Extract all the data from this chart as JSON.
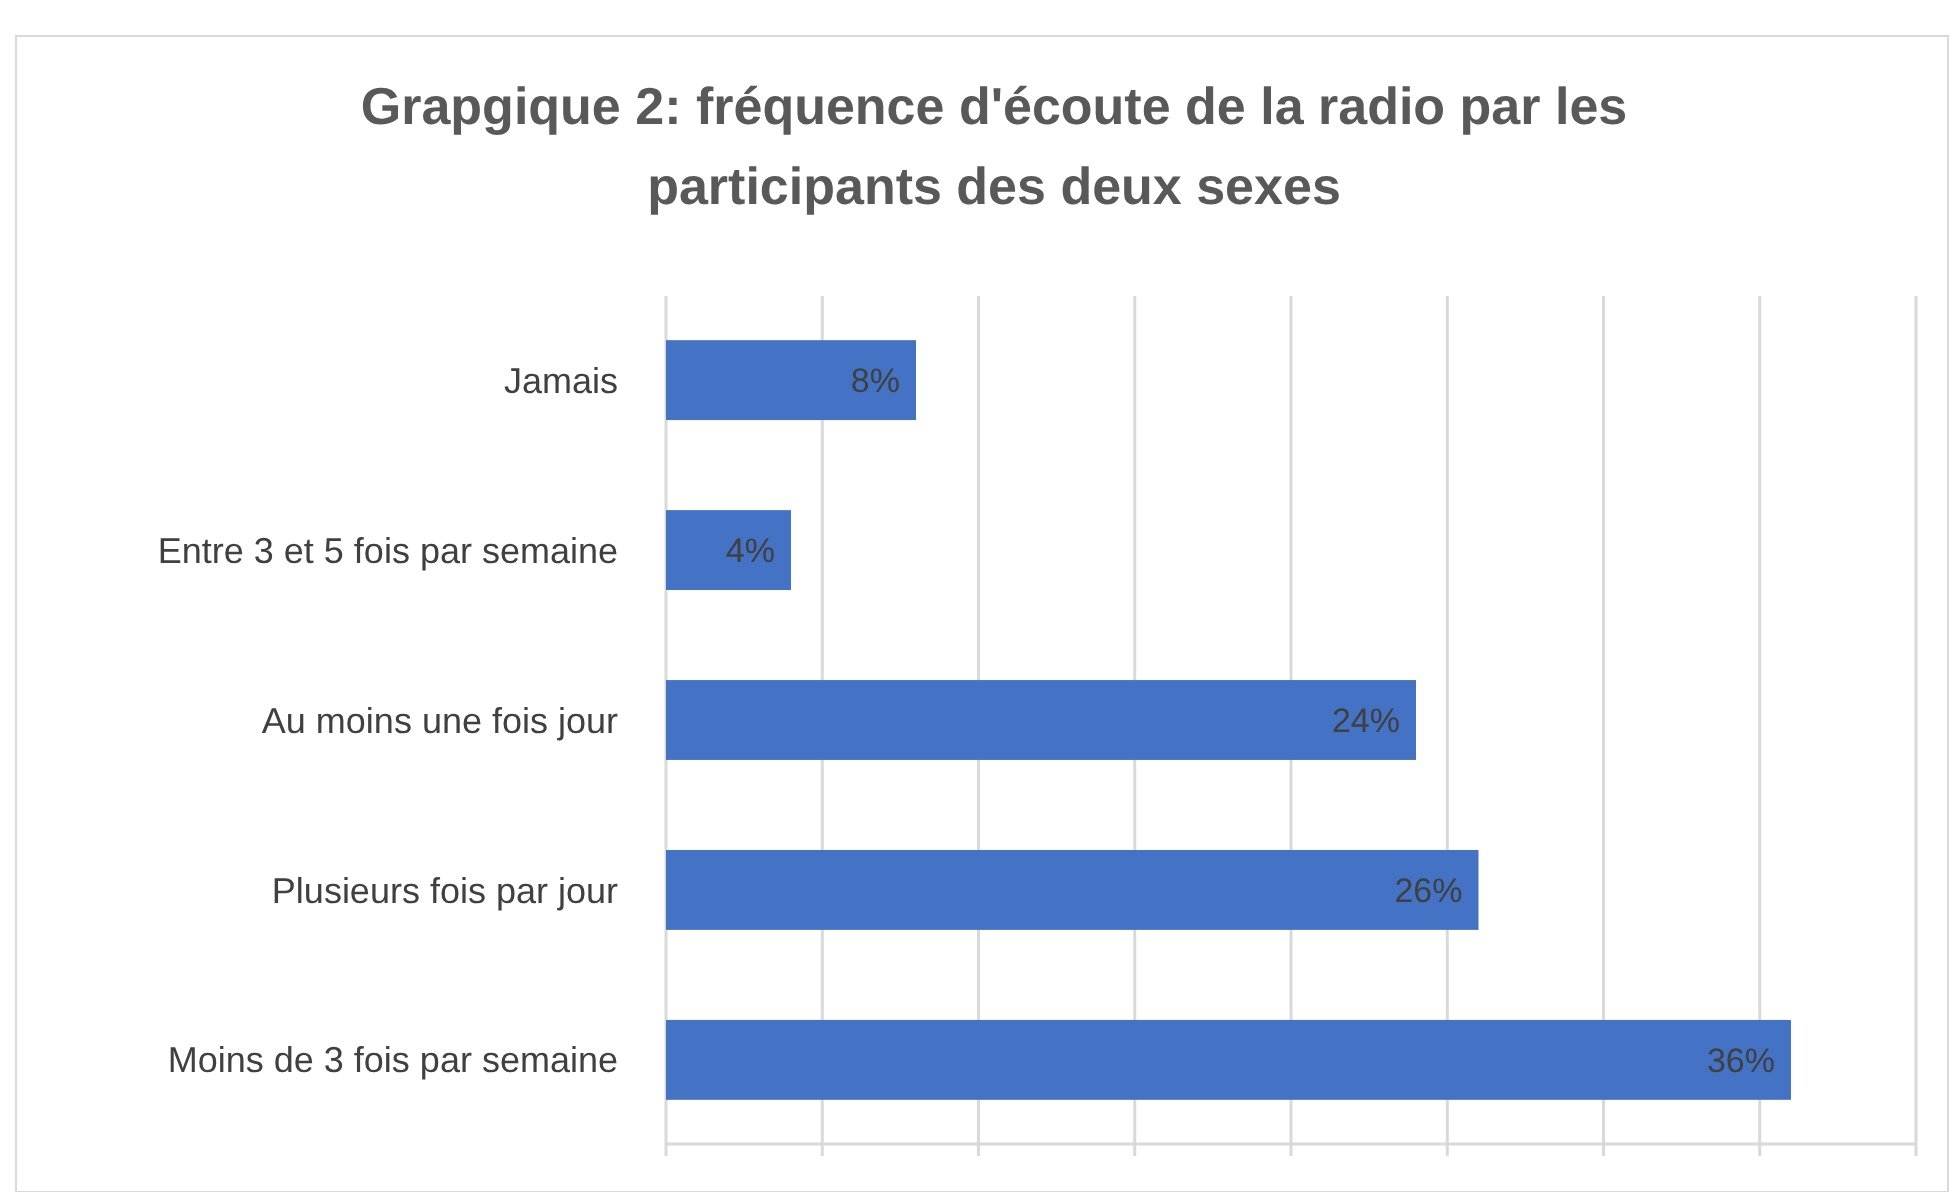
{
  "chart_data": {
    "type": "bar",
    "orientation": "horizontal",
    "title": "Grapgique 2: fréquence d'écoute de la radio par les participants des deux sexes",
    "categories": [
      "Jamais",
      "Entre 3 et 5 fois par semaine",
      "Au moins une fois jour",
      "Plusieurs fois par jour",
      "Moins de 3 fois par semaine"
    ],
    "values": [
      8,
      4,
      24,
      26,
      36
    ],
    "value_labels": [
      "8%",
      "4%",
      "24%",
      "26%",
      "36%"
    ],
    "color": "#4472c4",
    "xlim": [
      0,
      40
    ],
    "xticks": [
      {
        "value": 0,
        "label": null
      },
      {
        "value": 5,
        "label": null
      },
      {
        "value": 10,
        "label": null
      },
      {
        "value": 15,
        "label": null
      },
      {
        "value": 20,
        "label": null
      },
      {
        "value": 25,
        "label": null
      },
      {
        "value": 30,
        "label": null
      },
      {
        "value": 35,
        "label": null
      },
      {
        "value": 40,
        "label": null
      }
    ],
    "tick_labels": "y",
    "grid": "x"
  }
}
